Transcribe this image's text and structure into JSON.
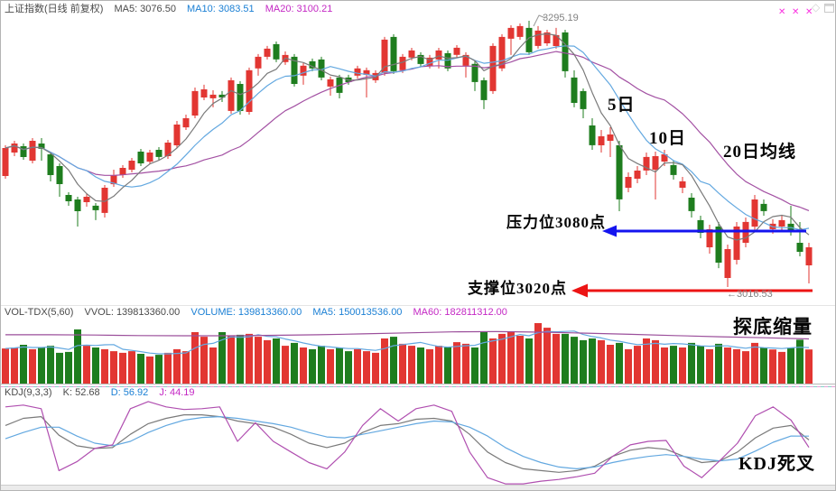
{
  "header": {
    "symbol": "上证指数(日线 前复权)",
    "ma5": "MA5: 3076.50",
    "ma10": "MA10: 3083.51",
    "ma20": "MA20: 3100.21"
  },
  "volume_header": {
    "indicator": "VOL-TDX(5,60)",
    "vvol": "VVOL: 139813360.00",
    "volume": "VOLUME: 139813360.00",
    "ma5": "MA5: 150013536.00",
    "ma60": "MA60: 182811312.00"
  },
  "kdj_header": {
    "indicator": "KDJ(9,3,3)",
    "k": "K: 52.68",
    "d": "D: 56.92",
    "j": "J: 44.19"
  },
  "annotations": {
    "peak": "3295.19",
    "low": "←3016.53",
    "ma5_callout": "5日",
    "ma10_callout": "10日",
    "ma20_callout": "20日均线",
    "resistance": "压力位3080点",
    "support": "支撑位3020点",
    "volume_note": "探底缩量",
    "kdj_note": "KDJ死叉"
  },
  "icons": {
    "signal_marker": "✕",
    "diamond": "◇"
  },
  "colors": {
    "up": "#e23632",
    "down": "#1e7d1e",
    "ma5": "#7a7a7a",
    "ma10": "#63a8e0",
    "ma20": "#a351a3",
    "vol_ma5": "#63a8e0",
    "vol_ma60": "#9b4f9b",
    "k": "#7a7a7a",
    "d": "#63a8e0",
    "j": "#b04fb0",
    "resistance_arrow": "#1414ef",
    "support_arrow": "#ec1414",
    "callout_gray": "#999999"
  },
  "chart_data": [
    {
      "id": "main",
      "type": "candlestick",
      "title": "上证指数(日线 前复权)",
      "legend": [
        "MA5",
        "MA10",
        "MA20"
      ],
      "ma_values": {
        "ma5": 3076.5,
        "ma10": 3083.51,
        "ma20": 3100.21
      },
      "visible_price_range": [
        2999.5,
        3297.0
      ],
      "marked_high": 3295.19,
      "marked_low": 3016.53,
      "resistance_level": 3080,
      "support_level": 3020,
      "grid": false,
      "candles": [
        [
          3132.7,
          3164.9,
          3129.9,
          3162.0
        ],
        [
          3157.3,
          3169.6,
          3153.5,
          3166.7
        ],
        [
          3163.9,
          3166.7,
          3149.7,
          3152.6
        ],
        [
          3148.8,
          3172.4,
          3145.9,
          3169.6
        ],
        [
          3166.7,
          3172.4,
          3148.8,
          3161.1
        ],
        [
          3155.4,
          3157.3,
          3127.1,
          3133.7
        ],
        [
          3143.1,
          3145.9,
          3111.0,
          3124.2
        ],
        [
          3112.9,
          3115.7,
          3101.6,
          3106.3
        ],
        [
          3108.2,
          3111.0,
          3079.8,
          3095.9
        ],
        [
          3105.3,
          3113.8,
          3100.6,
          3111.0
        ],
        [
          3101.6,
          3104.4,
          3086.5,
          3096.9
        ],
        [
          3094.0,
          3123.3,
          3089.3,
          3120.4
        ],
        [
          3124.2,
          3139.3,
          3121.4,
          3133.7
        ],
        [
          3133.7,
          3144.1,
          3130.8,
          3141.2
        ],
        [
          3139.3,
          3151.6,
          3136.5,
          3148.8
        ],
        [
          3158.2,
          3161.1,
          3143.1,
          3145.9
        ],
        [
          3147.8,
          3160.1,
          3145.0,
          3157.3
        ],
        [
          3160.1,
          3163.0,
          3149.7,
          3152.6
        ],
        [
          3153.5,
          3170.5,
          3150.7,
          3167.7
        ],
        [
          3164.9,
          3190.3,
          3162.0,
          3186.6
        ],
        [
          3183.7,
          3197.0,
          3180.9,
          3193.2
        ],
        [
          3196.0,
          3225.3,
          3193.2,
          3221.6
        ],
        [
          3214.9,
          3228.2,
          3212.1,
          3223.4
        ],
        [
          3214.0,
          3222.5,
          3204.6,
          3217.8
        ],
        [
          3217.8,
          3221.6,
          3210.2,
          3214.9
        ],
        [
          3200.8,
          3235.8,
          3197.9,
          3232.9
        ],
        [
          3229.1,
          3232.0,
          3197.0,
          3200.8
        ],
        [
          3199.8,
          3246.2,
          3197.0,
          3243.4
        ],
        [
          3245.3,
          3260.3,
          3237.7,
          3257.5
        ],
        [
          3257.5,
          3268.8,
          3254.7,
          3266.0
        ],
        [
          3270.7,
          3273.5,
          3251.9,
          3254.7
        ],
        [
          3251.9,
          3263.1,
          3249.0,
          3259.4
        ],
        [
          3257.5,
          3260.3,
          3226.3,
          3229.1
        ],
        [
          3237.7,
          3250.9,
          3228.2,
          3248.1
        ],
        [
          3252.8,
          3255.6,
          3242.4,
          3245.3
        ],
        [
          3254.7,
          3257.5,
          3232.9,
          3235.8
        ],
        [
          3226.3,
          3236.7,
          3216.8,
          3233.9
        ],
        [
          3235.8,
          3238.6,
          3214.0,
          3219.7
        ],
        [
          3235.8,
          3238.6,
          3228.2,
          3231.0
        ],
        [
          3237.7,
          3248.1,
          3234.8,
          3245.3
        ],
        [
          3238.6,
          3246.2,
          3214.9,
          3243.4
        ],
        [
          3232.9,
          3243.4,
          3230.1,
          3240.5
        ],
        [
          3240.5,
          3278.3,
          3237.7,
          3275.4
        ],
        [
          3278.3,
          3281.1,
          3239.6,
          3242.4
        ],
        [
          3243.4,
          3260.3,
          3240.5,
          3257.5
        ],
        [
          3256.6,
          3266.9,
          3253.8,
          3264.1
        ],
        [
          3259.4,
          3262.2,
          3247.2,
          3250.0
        ],
        [
          3248.1,
          3259.4,
          3245.3,
          3256.6
        ],
        [
          3254.7,
          3266.9,
          3245.3,
          3264.1
        ],
        [
          3261.3,
          3264.1,
          3242.4,
          3245.3
        ],
        [
          3259.4,
          3269.7,
          3256.6,
          3266.9
        ],
        [
          3248.1,
          3262.2,
          3235.8,
          3259.4
        ],
        [
          3250.0,
          3252.8,
          3221.6,
          3231.0
        ],
        [
          3232.9,
          3235.8,
          3202.7,
          3212.1
        ],
        [
          3221.6,
          3271.6,
          3218.7,
          3268.8
        ],
        [
          3245.3,
          3281.1,
          3242.4,
          3278.3
        ],
        [
          3276.4,
          3290.5,
          3259.4,
          3287.7
        ],
        [
          3278.3,
          3292.4,
          3275.4,
          3289.6
        ],
        [
          3287.7,
          3295.19,
          3259.4,
          3262.2
        ],
        [
          3268.8,
          3289.6,
          3266.0,
          3284.9
        ],
        [
          3271.6,
          3285.8,
          3268.8,
          3283.0
        ],
        [
          3268.8,
          3287.7,
          3266.0,
          3280.2
        ],
        [
          3283.0,
          3285.8,
          3235.8,
          3242.4
        ],
        [
          3235.8,
          3243.4,
          3204.6,
          3209.3
        ],
        [
          3221.6,
          3224.4,
          3193.2,
          3202.7
        ],
        [
          3185.6,
          3193.2,
          3160.1,
          3164.9
        ],
        [
          3164.9,
          3180.9,
          3157.3,
          3174.3
        ],
        [
          3169.6,
          3183.7,
          3152.6,
          3176.2
        ],
        [
          3164.9,
          3169.6,
          3095.9,
          3108.2
        ],
        [
          3120.4,
          3136.5,
          3115.7,
          3131.8
        ],
        [
          3129.9,
          3143.1,
          3125.2,
          3138.4
        ],
        [
          3138.4,
          3157.3,
          3133.7,
          3152.6
        ],
        [
          3139.3,
          3158.2,
          3108.2,
          3153.5
        ],
        [
          3147.8,
          3160.1,
          3143.1,
          3155.4
        ],
        [
          3144.1,
          3148.8,
          3128.9,
          3133.7
        ],
        [
          3120.4,
          3131.8,
          3114.8,
          3127.1
        ],
        [
          3110.0,
          3114.8,
          3089.3,
          3095.9
        ],
        [
          3086.5,
          3091.2,
          3067.5,
          3073.2
        ],
        [
          3058.1,
          3081.7,
          3051.5,
          3077.0
        ],
        [
          3079.8,
          3084.6,
          3036.3,
          3042.0
        ],
        [
          3026.0,
          3060.9,
          3016.53,
          3056.2
        ],
        [
          3044.9,
          3084.6,
          3040.1,
          3079.8
        ],
        [
          3062.8,
          3089.3,
          3058.1,
          3084.6
        ],
        [
          3079.8,
          3112.9,
          3075.1,
          3108.2
        ],
        [
          3103.5,
          3108.2,
          3091.2,
          3095.9
        ],
        [
          3077.0,
          3087.4,
          3072.3,
          3082.7
        ],
        [
          3079.8,
          3091.2,
          3075.1,
          3086.5
        ],
        [
          3082.7,
          3101.6,
          3070.4,
          3075.1
        ],
        [
          3062.8,
          3084.6,
          3048.6,
          3053.4
        ],
        [
          3039.2,
          3062.8,
          3020.3,
          3058.1
        ]
      ]
    },
    {
      "id": "volume",
      "type": "bar",
      "title": "VOL-TDX(5,60)",
      "unit": "millions",
      "current_volume": 139813360.0,
      "ma5_value": 150013536.0,
      "ma60_value": 182811312.0,
      "values_millions": [
        144,
        148,
        159,
        141,
        148,
        155,
        126,
        130,
        222,
        155,
        148,
        141,
        133,
        126,
        133,
        122,
        111,
        118,
        126,
        141,
        133,
        211,
        192,
        148,
        211,
        196,
        200,
        204,
        192,
        178,
        185,
        155,
        167,
        148,
        141,
        155,
        141,
        148,
        133,
        141,
        133,
        126,
        185,
        192,
        163,
        155,
        148,
        141,
        155,
        148,
        170,
        163,
        148,
        211,
        185,
        204,
        211,
        196,
        185,
        248,
        229,
        204,
        204,
        192,
        178,
        185,
        178,
        159,
        167,
        141,
        155,
        185,
        178,
        148,
        155,
        148,
        167,
        155,
        141,
        163,
        148,
        141,
        133,
        167,
        148,
        140,
        130,
        148,
        180,
        139.8
      ],
      "ma60_millions": [
        200,
        200,
        199,
        197,
        196,
        196,
        198,
        200,
        204,
        208,
        212,
        213,
        211,
        207,
        202,
        197,
        192,
        188,
        183
      ]
    },
    {
      "id": "kdj",
      "type": "line",
      "title": "KDJ(9,3,3)",
      "value_range": [
        0,
        100
      ],
      "series": [
        {
          "name": "K",
          "last": 52.68
        },
        {
          "name": "D",
          "last": 56.92
        },
        {
          "name": "J",
          "last": 44.19
        }
      ],
      "k": [
        69,
        77,
        79,
        58,
        46,
        43,
        44,
        59,
        71,
        77,
        81,
        81,
        79,
        74,
        71,
        67,
        59,
        49,
        44,
        49,
        61,
        69,
        71,
        76,
        77,
        74,
        59,
        39,
        27,
        20,
        18,
        16,
        18,
        23,
        34,
        41,
        44,
        42,
        34,
        27,
        29,
        39,
        55,
        66,
        69,
        52.68
      ],
      "d": [
        54,
        61,
        67,
        67,
        57,
        49,
        46,
        51,
        61,
        69,
        75,
        78,
        79,
        77,
        74,
        71,
        67,
        61,
        56,
        55,
        59,
        63,
        67,
        71,
        74,
        73,
        67,
        57,
        44,
        34,
        27,
        22,
        20,
        22,
        27,
        31,
        34,
        36,
        34,
        31,
        29,
        31,
        40,
        50,
        57,
        56.92
      ],
      "j": [
        90,
        92,
        88,
        18,
        28,
        43,
        47,
        88,
        96,
        90,
        87,
        88,
        90,
        51,
        72,
        51,
        39,
        27,
        20,
        39,
        69,
        88,
        74,
        88,
        92,
        85,
        39,
        10,
        3,
        3,
        6,
        8,
        11,
        15,
        34,
        47,
        51,
        52,
        23,
        10,
        29,
        49,
        80,
        90,
        75,
        44.19
      ]
    }
  ]
}
